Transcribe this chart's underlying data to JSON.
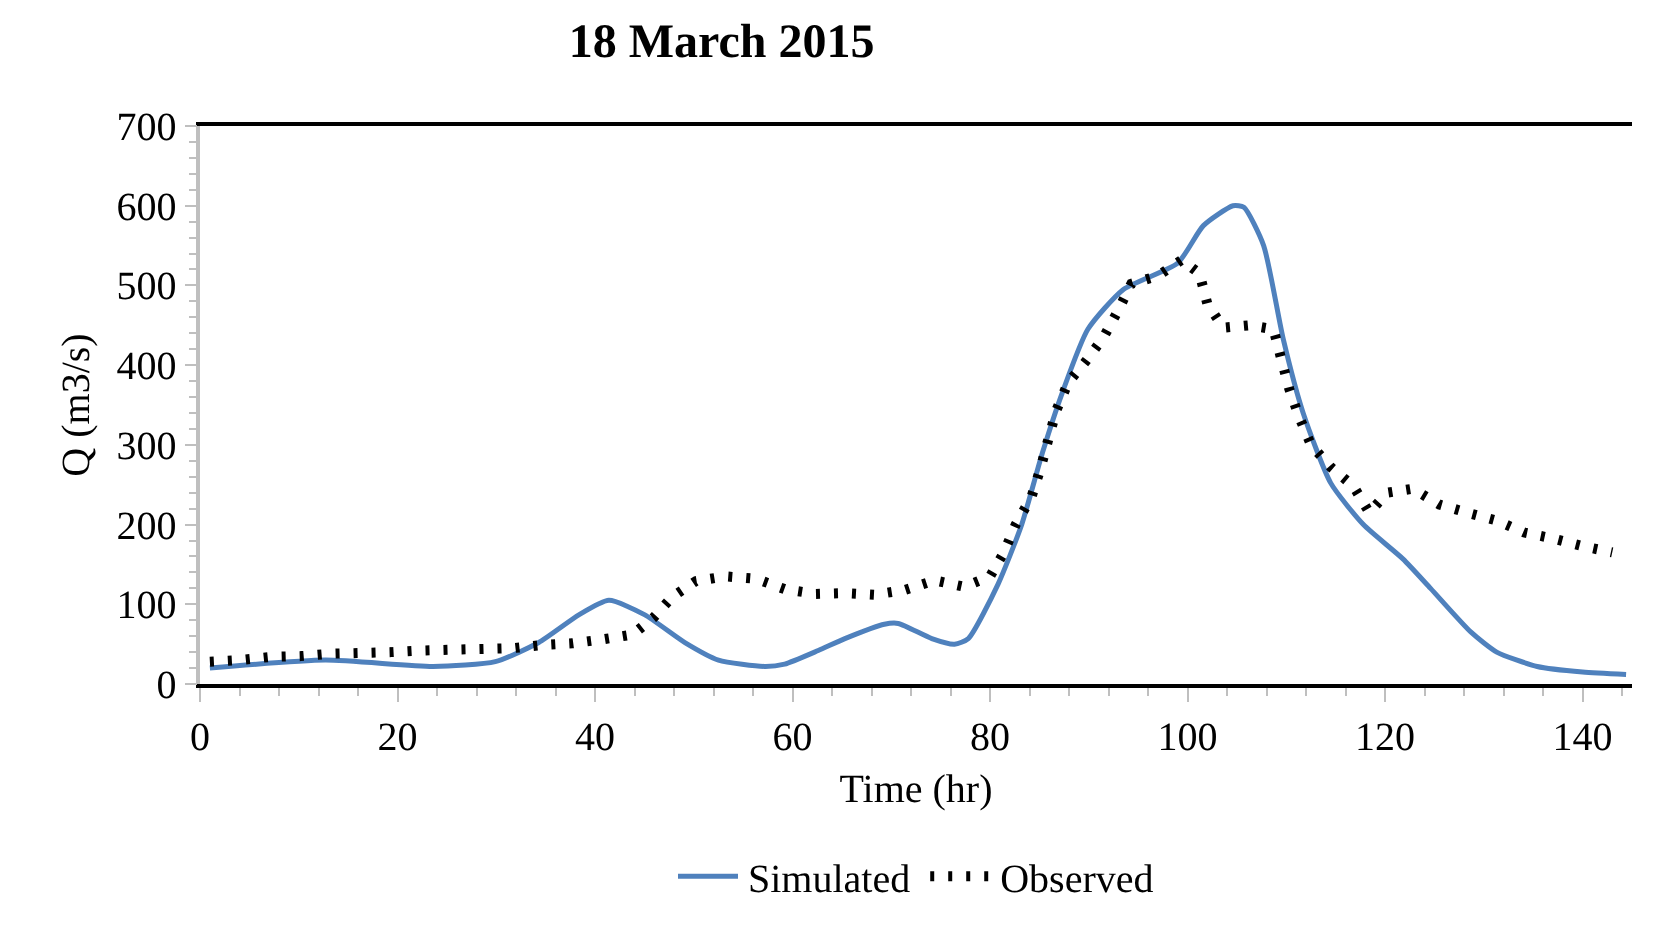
{
  "chart_data": {
    "type": "line",
    "title": "18 March 2015",
    "xlabel": "Time (hr)",
    "ylabel": "Q (m3/s)",
    "xlim": [
      0,
      145
    ],
    "xticks": [
      0,
      20,
      40,
      60,
      80,
      100,
      120,
      140
    ],
    "ylim": [
      0,
      700
    ],
    "yticks": [
      0,
      100,
      200,
      300,
      400,
      500,
      600,
      700
    ],
    "grid": false,
    "legend": "bottom",
    "marker": "none",
    "series": [
      {
        "name": "Simulated",
        "color": "#4f81bd",
        "line_style": "solid",
        "x": [
          1,
          12.7,
          23.6,
          29.9,
          34.3,
          38.4,
          41.4,
          45,
          49.1,
          52.5,
          57.2,
          59.2,
          62.6,
          65.3,
          69.3,
          70.7,
          74.1,
          76.4,
          77.8,
          80.8,
          83.2,
          85.3,
          87.3,
          89.9,
          93.5,
          99,
          101.6,
          104.6,
          105.7,
          107.7,
          109.7,
          111.7,
          114.5,
          117.8,
          121.8,
          124.6,
          128.7,
          131.3,
          135.4,
          140,
          144.4
        ],
        "values": [
          20,
          30,
          22,
          28,
          52,
          87,
          105,
          87,
          52,
          30,
          22,
          25,
          42,
          57,
          75,
          76,
          57,
          50,
          57,
          125,
          200,
          290,
          365,
          445,
          495,
          528,
          575,
          600,
          598,
          550,
          432,
          340,
          252,
          200,
          157,
          120,
          65,
          40,
          22,
          15,
          12
        ]
      },
      {
        "name": "Observed",
        "color": "#000000",
        "line_style": "dotted",
        "x": [
          1,
          4,
          7.2,
          10.2,
          13.3,
          16.4,
          19.4,
          22.5,
          25.5,
          28.6,
          31.7,
          34.7,
          37.7,
          40.8,
          43.8,
          45.9,
          47.8,
          50.2,
          53.2,
          56.3,
          59.2,
          62.3,
          65.3,
          68.3,
          71.4,
          74.4,
          77.4,
          80,
          81.4,
          82.6,
          84.2,
          85.1,
          85.9,
          86.7,
          87.9,
          89.7,
          91.5,
          92.9,
          94.3,
          97,
          99.4,
          101.2,
          102,
          103.6,
          106.3,
          108.7,
          109.5,
          110.3,
          111.3,
          112.5,
          114.5,
          116.8,
          118.4,
          120.2,
          122.8,
          125.5,
          128.3,
          131.3,
          134.1,
          137.2,
          140,
          143
        ],
        "values": [
          28,
          30,
          34,
          35,
          38,
          39,
          40,
          42,
          43,
          44,
          45,
          49,
          51,
          56,
          62,
          83,
          109,
          129,
          135,
          132,
          119,
          113,
          114,
          112,
          118,
          130,
          122,
          135,
          165,
          200,
          235,
          270,
          307,
          343,
          378,
          405,
          435,
          467,
          502,
          512,
          532,
          515,
          477,
          447,
          450,
          445,
          407,
          370,
          335,
          300,
          272,
          248,
          215,
          240,
          245,
          225,
          215,
          205,
          190,
          182,
          173,
          165
        ]
      }
    ]
  }
}
